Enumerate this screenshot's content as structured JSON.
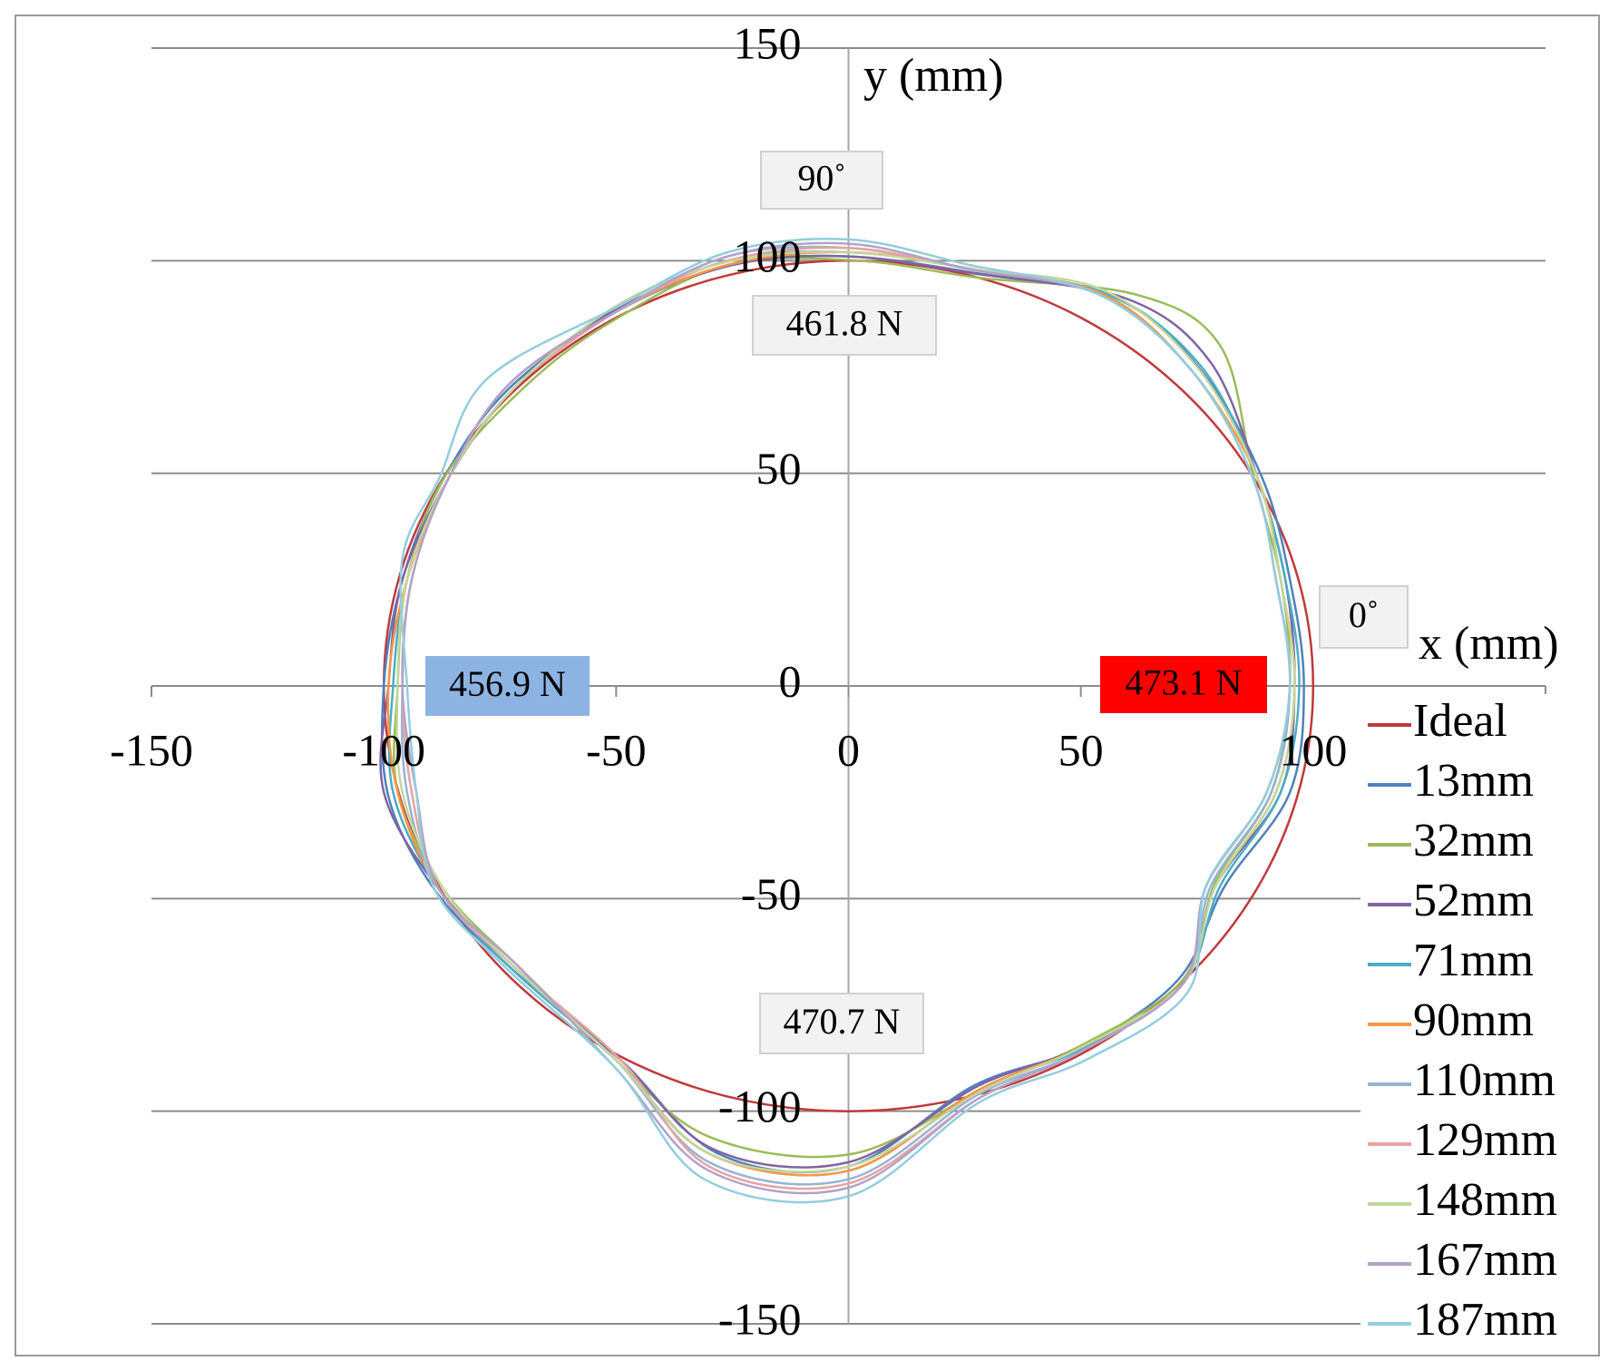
{
  "chart_data": {
    "type": "line",
    "x_label": "x (mm)",
    "y_label": "y (mm)",
    "xlim": [
      -150,
      150
    ],
    "xticks": [
      -150,
      -100,
      -50,
      0,
      50,
      100,
      150
    ],
    "ylim": [
      -150,
      150
    ],
    "yticks": [
      -150,
      -100,
      -50,
      0,
      50,
      100,
      150
    ],
    "grid": true,
    "legend": "right",
    "annotations": [
      {
        "text": "90˚"
      },
      {
        "text": "461.8   N"
      },
      {
        "text": "456.9 N",
        "color": "#8db3e2"
      },
      {
        "text": "473.1 N",
        "color": "#ff0000"
      },
      {
        "text": "0˚"
      },
      {
        "text": "470.7 N"
      }
    ],
    "series": [
      {
        "name": "Ideal",
        "color": "#c0393b",
        "x": [
          100,
          96.6,
          86.6,
          70.7,
          50,
          25.9,
          0,
          -25.9,
          -50,
          -70.7,
          -86.6,
          -96.6,
          -100,
          -96.6,
          -86.6,
          -70.7,
          -50,
          -25.9,
          0,
          25.9,
          50,
          70.7,
          86.6,
          96.6
        ],
        "values": [
          0,
          25.9,
          50,
          70.7,
          86.6,
          96.6,
          100,
          96.6,
          86.6,
          70.7,
          50,
          25.9,
          0,
          -25.9,
          -50,
          -70.7,
          -86.6,
          -96.6,
          -100,
          -96.6,
          -86.6,
          -70.7,
          -50,
          -25.9
        ]
      },
      {
        "name": "13mm",
        "color": "#4f81bd",
        "x": [
          98,
          95,
          89,
          76,
          58,
          28,
          0,
          -25,
          -50,
          -73,
          -87,
          -96,
          -100,
          -99,
          -89,
          -73,
          -49,
          -28,
          0,
          27,
          50,
          71,
          81,
          95
        ],
        "values": [
          0,
          25,
          49,
          74,
          91,
          97,
          101,
          99,
          88,
          70,
          49,
          25,
          0,
          -26,
          -48,
          -66,
          -88,
          -110,
          -113,
          -94,
          -85,
          -69,
          -47,
          -25
        ]
      },
      {
        "name": "32mm",
        "color": "#9bbb59",
        "x": [
          95,
          93,
          87,
          80,
          62,
          28,
          2,
          -26,
          -52,
          -70,
          -87,
          -95,
          -97,
          -97,
          -87,
          -71,
          -51,
          -30,
          1,
          30,
          51,
          72,
          79,
          91
        ],
        "values": [
          0,
          25,
          50,
          80,
          92,
          96,
          100,
          99,
          85,
          70,
          49,
          25,
          0,
          -25,
          -48,
          -66,
          -87,
          -106,
          -110,
          -94,
          -84,
          -69,
          -46,
          -25
        ]
      },
      {
        "name": "52mm",
        "color": "#8064a2",
        "x": [
          96,
          94,
          88,
          78,
          60,
          27,
          0,
          -25,
          -51,
          -72,
          -86,
          -96,
          -99,
          -100,
          -88,
          -72,
          -49,
          -29,
          0,
          28,
          50,
          72,
          79,
          93
        ],
        "values": [
          0,
          25,
          49,
          76,
          91,
          97,
          101,
          99,
          88,
          70,
          49,
          25,
          0,
          -25,
          -48,
          -66,
          -88,
          -109,
          -112,
          -94,
          -85,
          -70,
          -47,
          -25
        ]
      },
      {
        "name": "71mm",
        "color": "#4bacc6",
        "x": [
          97,
          94,
          88,
          76,
          56,
          27,
          0,
          -26,
          -50,
          -72,
          -86,
          -95,
          -98,
          -98,
          -88,
          -73,
          -50,
          -30,
          0,
          28,
          51,
          72,
          80,
          93
        ],
        "values": [
          0,
          25,
          49,
          75,
          92,
          98,
          102,
          100,
          88,
          70,
          49,
          25,
          0,
          -25,
          -48,
          -66,
          -88,
          -110,
          -114,
          -95,
          -85,
          -70,
          -47,
          -25
        ]
      },
      {
        "name": "90mm",
        "color": "#f79646",
        "x": [
          96,
          93,
          88,
          74,
          55,
          27,
          0,
          -26,
          -50,
          -72,
          -86,
          -95,
          -99,
          -97,
          -88,
          -72,
          -50,
          -30,
          0,
          28,
          50,
          72,
          79,
          92
        ],
        "values": [
          0,
          25,
          49,
          74,
          92,
          98,
          102,
          99,
          88,
          70,
          49,
          25,
          0,
          -25,
          -48,
          -66,
          -88,
          -110,
          -114,
          -95,
          -85,
          -70,
          -47,
          -25
        ]
      },
      {
        "name": "110mm",
        "color": "#95b3d7",
        "x": [
          95,
          92,
          87,
          74,
          54,
          26,
          0,
          -26,
          -50,
          -73,
          -86,
          -94,
          -96,
          -95,
          -88,
          -72,
          -50,
          -30,
          0,
          28,
          50,
          72,
          78,
          91
        ],
        "values": [
          0,
          25,
          49,
          74,
          92,
          98,
          103,
          101,
          88,
          71,
          49,
          25,
          0,
          -25,
          -48,
          -66,
          -88,
          -112,
          -116,
          -96,
          -86,
          -70,
          -47,
          -25
        ]
      },
      {
        "name": "129mm",
        "color": "#e6a3a1",
        "x": [
          95,
          92,
          87,
          74,
          54,
          26,
          0,
          -26,
          -50,
          -72,
          -86,
          -94,
          -96,
          -94,
          -88,
          -72,
          -49,
          -30,
          0,
          28,
          50,
          72,
          77,
          90
        ],
        "values": [
          0,
          25,
          49,
          74,
          92,
          98,
          103,
          100,
          88,
          70,
          49,
          25,
          0,
          -25,
          -48,
          -66,
          -88,
          -113,
          -117,
          -97,
          -86,
          -70,
          -47,
          -25
        ]
      },
      {
        "name": "148mm",
        "color": "#c3d69b",
        "x": [
          96,
          93,
          88,
          75,
          55,
          27,
          0,
          -25,
          -49,
          -72,
          -86,
          -95,
          -97,
          -96,
          -87,
          -72,
          -50,
          -30,
          0,
          29,
          50,
          72,
          79,
          92
        ],
        "values": [
          0,
          25,
          49,
          75,
          93,
          98,
          102,
          100,
          90,
          70,
          49,
          25,
          0,
          -25,
          -48,
          -66,
          -88,
          -110,
          -113,
          -95,
          -85,
          -70,
          -47,
          -25
        ]
      },
      {
        "name": "167mm",
        "color": "#b3a2c7",
        "x": [
          95,
          92,
          87,
          74,
          54,
          26,
          0,
          -26,
          -50,
          -73,
          -86,
          -94,
          -96,
          -93,
          -88,
          -71,
          -50,
          -30,
          0,
          28,
          50,
          72,
          77,
          90
        ],
        "values": [
          0,
          25,
          49,
          74,
          92,
          98,
          104,
          101,
          88,
          71,
          49,
          25,
          0,
          -25,
          -48,
          -66,
          -90,
          -114,
          -118,
          -97,
          -86,
          -70,
          -47,
          -25
        ]
      },
      {
        "name": "187mm",
        "color": "#93cddd",
        "x": [
          95,
          92,
          87,
          74,
          54,
          26,
          0,
          -26,
          -50,
          -78,
          -88,
          -96,
          -95,
          -93,
          -89,
          -74,
          -50,
          -31,
          0,
          28,
          51,
          73,
          77,
          90
        ],
        "values": [
          0,
          25,
          49,
          74,
          92,
          99,
          105,
          102,
          89,
          72,
          49,
          30,
          0,
          -25,
          -48,
          -66,
          -90,
          -116,
          -120,
          -98,
          -88,
          -72,
          -47,
          -25
        ]
      }
    ]
  }
}
